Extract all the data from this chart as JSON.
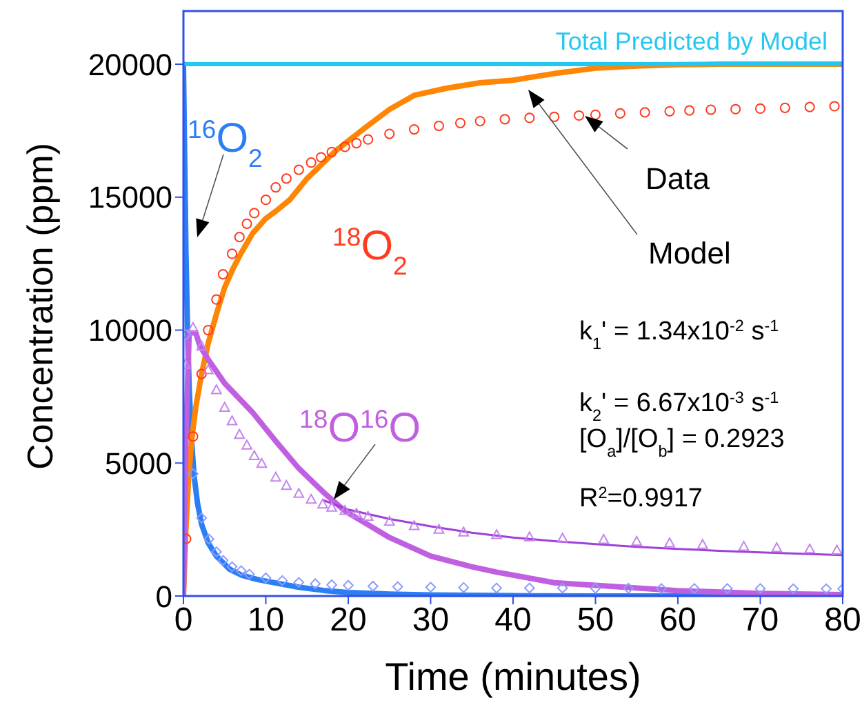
{
  "chart_data": {
    "type": "line",
    "xlabel": "Time (minutes)",
    "ylabel": "Concentration (ppm)",
    "xlim": [
      0,
      80
    ],
    "xticks": [
      0,
      10,
      20,
      30,
      40,
      50,
      60,
      70,
      80
    ],
    "ylim": [
      0,
      22000
    ],
    "yticks": [
      0,
      5000,
      10000,
      15000,
      20000
    ],
    "grid": false,
    "legend": false,
    "series": [
      {
        "name": "$^{16}$O$_{2}$",
        "type": "line",
        "color": "#2a7ff5",
        "marker": "none",
        "x": [
          0,
          0.15,
          0.3,
          0.5,
          0.7,
          1,
          1.3,
          1.7,
          2.2,
          3,
          4,
          5.6,
          7,
          9,
          11.2,
          14,
          17,
          20,
          25,
          30,
          40,
          50,
          60,
          80
        ],
        "values": [
          20000,
          16500,
          13000,
          10000,
          7800,
          5800,
          4500,
          3500,
          2700,
          2000,
          1500,
          1010,
          790,
          620,
          490,
          330,
          210,
          130,
          70,
          40,
          10,
          0,
          0,
          0
        ]
      },
      {
        "type": "scatter",
        "color": "#8a9cff",
        "marker": "diamond",
        "x": [
          0.33,
          1.17,
          2.2,
          3.1,
          4,
          4.8,
          5.9,
          7,
          8,
          10,
          12,
          14,
          16,
          18,
          20,
          23,
          26,
          30,
          34,
          38,
          42,
          46,
          50,
          54,
          58,
          62,
          66,
          70,
          74,
          78,
          80
        ],
        "values": [
          9830,
          4600,
          2930,
          2140,
          1660,
          1340,
          1100,
          950,
          820,
          680,
          580,
          510,
          460,
          420,
          400,
          370,
          350,
          330,
          320,
          300,
          300,
          300,
          290,
          290,
          280,
          280,
          280,
          280,
          270,
          270,
          270
        ]
      },
      {
        "type": "line",
        "color": "#ff8505",
        "marker": "none",
        "x": [
          0,
          0.3,
          0.6,
          1,
          1.5,
          2.2,
          3,
          4,
          5,
          6,
          7,
          8.4,
          10,
          11.2,
          12.9,
          15,
          18.5,
          22,
          25,
          28,
          32,
          36,
          40,
          45,
          50,
          55,
          60,
          65,
          70,
          80
        ],
        "values": [
          0,
          2500,
          4300,
          5900,
          7100,
          8350,
          9500,
          10600,
          11600,
          12300,
          12900,
          13640,
          14200,
          14470,
          14900,
          15700,
          16750,
          17600,
          18300,
          18830,
          19100,
          19300,
          19400,
          19650,
          19850,
          19930,
          19980,
          20000,
          20000,
          20000
        ]
      },
      {
        "name": "$^{18}$O$_{2}$",
        "type": "scatter",
        "color": "#ff3b1f",
        "marker": "circle",
        "x": [
          0.33,
          1.17,
          2.2,
          3,
          4,
          4.8,
          5.9,
          6.8,
          7.7,
          8.6,
          10,
          11.2,
          12.5,
          14,
          15.5,
          16.7,
          18,
          19.6,
          21,
          22.4,
          25,
          28,
          31,
          33.6,
          36,
          39,
          42,
          45,
          48,
          50,
          53,
          56,
          59,
          61.4,
          64,
          67,
          70,
          73,
          76,
          79
        ],
        "values": [
          2150,
          6000,
          8350,
          10000,
          11150,
          12100,
          12870,
          13500,
          14000,
          14400,
          14900,
          15370,
          15700,
          16030,
          16300,
          16500,
          16700,
          16890,
          17030,
          17170,
          17380,
          17550,
          17680,
          17790,
          17860,
          17930,
          17980,
          18020,
          18070,
          18100,
          18150,
          18190,
          18230,
          18260,
          18290,
          18310,
          18330,
          18360,
          18390,
          18420
        ]
      },
      {
        "name": "$^{18}$O$^{16}$O",
        "type": "line",
        "color": "#c060e0",
        "marker": "none",
        "x": [
          0,
          0.3,
          0.7,
          1.5,
          2,
          3,
          5,
          8.4,
          11,
          14,
          17,
          19.6,
          25,
          30,
          35,
          38,
          45,
          50,
          60,
          70,
          80
        ],
        "values": [
          0,
          6000,
          9900,
          9900,
          9400,
          8900,
          8000,
          6900,
          5900,
          4800,
          3900,
          3200,
          2200,
          1500,
          1100,
          900,
          500,
          400,
          200,
          100,
          50
        ]
      },
      {
        "type": "scatter",
        "color": "#c485ee",
        "marker": "triangle",
        "x": [
          0.22,
          1.17,
          2.2,
          3,
          4,
          5,
          5.9,
          6.8,
          7.7,
          8.6,
          9.5,
          11.2,
          12.5,
          14,
          15.5,
          16.9,
          18,
          19.6,
          21,
          22.4,
          25,
          28,
          31,
          34,
          38,
          42,
          46,
          51,
          55,
          59,
          63,
          68,
          72,
          76,
          79.3
        ],
        "values": [
          8700,
          10090,
          9390,
          8500,
          7750,
          7090,
          6580,
          6070,
          5670,
          5270,
          4980,
          4460,
          4150,
          3850,
          3630,
          3450,
          3330,
          3210,
          3100,
          2990,
          2800,
          2640,
          2500,
          2400,
          2300,
          2220,
          2170,
          2120,
          2050,
          1990,
          1930,
          1860,
          1810,
          1760,
          1720
        ]
      },
      {
        "type": "line",
        "color": "#a040d8",
        "marker": "none",
        "x": [
          17,
          20,
          25,
          30,
          35,
          40,
          45,
          50,
          55,
          60,
          65,
          70,
          75,
          80
        ],
        "values": [
          3600,
          3250,
          2900,
          2620,
          2380,
          2200,
          2060,
          1950,
          1850,
          1770,
          1700,
          1640,
          1590,
          1540
        ]
      },
      {
        "name": "Total Predicted by Model",
        "type": "line",
        "color": "#22c8f0",
        "marker": "none",
        "x": [
          0,
          80
        ],
        "values": [
          20000,
          20000
        ]
      }
    ],
    "annotations": [
      "Data",
      "Model",
      "k$_{1}$' = 1.34x10$^{-2}$ s$^{-1}$",
      "k$_{2}$' = 6.67x10$^{-3}$ s$^{-1}$",
      "[O$_{a}$]/[O$_{b}$] = 0.2923",
      "R$^{2}$=0.9917"
    ]
  }
}
